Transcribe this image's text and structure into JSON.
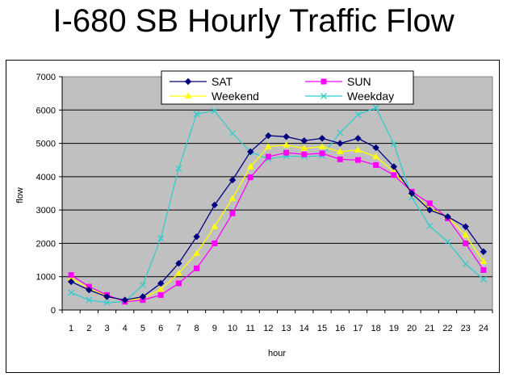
{
  "chart_data": {
    "type": "line",
    "title": "I-680 SB Hourly Traffic Flow",
    "xlabel": "hour",
    "ylabel": "flow",
    "x": [
      1,
      2,
      3,
      4,
      5,
      6,
      7,
      8,
      9,
      10,
      11,
      12,
      13,
      14,
      15,
      16,
      17,
      18,
      19,
      20,
      21,
      22,
      23,
      24
    ],
    "ylim": [
      0,
      7000
    ],
    "yticks": [
      0,
      1000,
      2000,
      3000,
      4000,
      5000,
      6000,
      7000
    ],
    "grid": true,
    "legend_position": "top",
    "plot_background": "#c0c0c0",
    "series": [
      {
        "name": "SAT",
        "color": "#000080",
        "marker": "diamond",
        "values": [
          850,
          600,
          400,
          300,
          400,
          800,
          1400,
          2200,
          3150,
          3900,
          4750,
          5230,
          5200,
          5080,
          5150,
          5000,
          5150,
          4870,
          4300,
          3500,
          3000,
          2800,
          2500,
          1750
        ]
      },
      {
        "name": "SUN",
        "color": "#ff00ff",
        "marker": "square",
        "values": [
          1050,
          700,
          450,
          250,
          300,
          450,
          800,
          1250,
          2000,
          2900,
          3980,
          4600,
          4720,
          4670,
          4700,
          4520,
          4500,
          4350,
          4050,
          3550,
          3200,
          2750,
          2000,
          1200
        ]
      },
      {
        "name": "Weekend",
        "color": "#ffff00",
        "marker": "triangle",
        "values": [
          950,
          650,
          420,
          270,
          350,
          620,
          1100,
          1700,
          2500,
          3350,
          4300,
          4900,
          4950,
          4850,
          4900,
          4750,
          4800,
          4600,
          4150,
          3500,
          3050,
          2800,
          2250,
          1450
        ]
      },
      {
        "name": "Weekday",
        "color": "#33cccc",
        "marker": "x",
        "values": [
          520,
          300,
          220,
          250,
          750,
          2150,
          4250,
          5880,
          5970,
          5300,
          4750,
          4530,
          4620,
          4600,
          4630,
          5320,
          5860,
          6070,
          4980,
          3380,
          2520,
          2050,
          1380,
          920
        ]
      }
    ]
  }
}
